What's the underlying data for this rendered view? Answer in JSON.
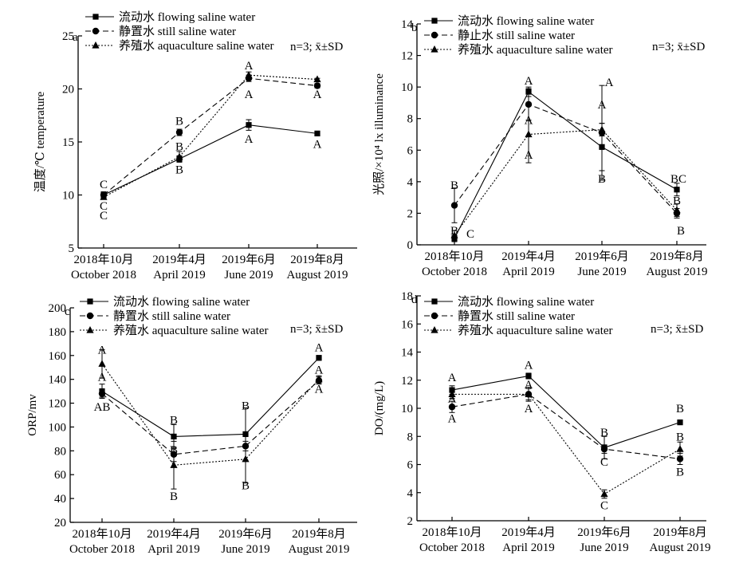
{
  "colors": {
    "ink": "#000000",
    "background": "#ffffff"
  },
  "chart_data": [
    {
      "panel": "a",
      "type": "line",
      "ylabel": "温度/℃ temperature",
      "ylim": [
        5,
        25
      ],
      "yticks": [
        5,
        10,
        15,
        20,
        25
      ],
      "categories": [
        "2018年10月 October 2018",
        "2019年4月 April 2019",
        "2019年6月 June 2019",
        "2019年8月 August 2019"
      ],
      "category_lines": [
        [
          "2018年10月",
          "October 2018"
        ],
        [
          "2019年4月",
          "April 2019"
        ],
        [
          "2019年6月",
          "June 2019"
        ],
        [
          "2019年8月",
          "August 2019"
        ]
      ],
      "stat_note": "n=3; x̄±SD",
      "series": [
        {
          "name": "流动水 flowing saline water",
          "marker": "square",
          "dash": "",
          "values": [
            10.0,
            13.4,
            16.6,
            15.8
          ],
          "errors": [
            0.3,
            0.3,
            0.5,
            0.1
          ],
          "letters": [
            {
              "text": "C",
              "y": 11.0
            },
            {
              "text": "B",
              "y": 12.4
            },
            {
              "text": "A",
              "y": 15.3
            },
            {
              "text": "A",
              "y": 14.8
            }
          ]
        },
        {
          "name": "静置水 still saline water",
          "marker": "circle",
          "dash": "7,4",
          "values": [
            10.0,
            15.9,
            21.0,
            20.3
          ],
          "errors": [
            0.3,
            0.3,
            0.3,
            0.2
          ],
          "letters": [
            {
              "text": "C",
              "y": 9.0
            },
            {
              "text": "B",
              "y": 17.0
            },
            {
              "text": "A",
              "y": 19.5
            },
            {
              "text": "A",
              "y": 19.5
            }
          ]
        },
        {
          "name": "养殖水 aquaculture saline water",
          "marker": "triangle",
          "dash": "2,2",
          "values": [
            9.8,
            13.6,
            21.3,
            20.9
          ],
          "errors": [
            0.2,
            0.5,
            0.3,
            0.1
          ],
          "letters": [
            {
              "text": "C",
              "y": 8.1
            },
            {
              "text": "B",
              "y": 14.6
            },
            {
              "text": "A",
              "y": 22.2
            },
            {
              "text": "",
              "y": 0
            }
          ]
        }
      ]
    },
    {
      "panel": "b",
      "type": "line",
      "ylabel": "光照/×10⁴ lx illuminance",
      "ylim": [
        0,
        14
      ],
      "yticks": [
        0,
        2,
        4,
        6,
        8,
        10,
        12,
        14
      ],
      "categories": [
        "2018年10月 October 2018",
        "2019年4月 April 2019",
        "2019年6月 June 2019",
        "2019年8月 August 2019"
      ],
      "category_lines": [
        [
          "2018年10月",
          "October 2018"
        ],
        [
          "2019年4月",
          "April 2019"
        ],
        [
          "2019年6月",
          "June 2019"
        ],
        [
          "2019年8月",
          "August 2019"
        ]
      ],
      "stat_note": "n=3; x̄±SD",
      "series": [
        {
          "name": "流动水 flowing saline water",
          "marker": "square",
          "dash": "",
          "values": [
            0.4,
            9.7,
            6.2,
            3.5
          ],
          "errors": [
            0.2,
            0.3,
            1.5,
            0.4
          ],
          "letters": [
            {
              "text": "B",
              "y": 3.8
            },
            {
              "text": "A",
              "y": 10.4
            },
            {
              "text": "B",
              "y": 4.2
            },
            {
              "text": "BC",
              "y": 4.2
            }
          ]
        },
        {
          "name": "静止水 still saline water",
          "marker": "circle",
          "dash": "7,4",
          "values": [
            2.5,
            8.9,
            7.1,
            2.0
          ],
          "errors": [
            1.1,
            1.0,
            3.0,
            0.3
          ],
          "letters": [
            {
              "text": "C",
              "y": 0.7
            },
            {
              "text": "A",
              "y": 7.9
            },
            {
              "text": "A",
              "y": 10.3
            },
            {
              "text": "B",
              "y": 2.8
            }
          ]
        },
        {
          "name": "养殖水 aquaculture saline water",
          "marker": "triangle",
          "dash": "2,2",
          "values": [
            0.6,
            7.0,
            7.3,
            2.2
          ],
          "errors": [
            0.3,
            1.8,
            0.4,
            0.4
          ],
          "letters": [
            {
              "text": "B",
              "y": 0.9
            },
            {
              "text": "A",
              "y": 5.7
            },
            {
              "text": "A",
              "y": 8.9
            },
            {
              "text": "B",
              "y": 0.9
            }
          ]
        }
      ]
    },
    {
      "panel": "c",
      "type": "line",
      "ylabel": "ORP/mv",
      "ylim": [
        20,
        200
      ],
      "yticks": [
        20,
        40,
        60,
        80,
        100,
        120,
        140,
        160,
        180,
        200
      ],
      "categories": [
        "2018年10月 October 2018",
        "2019年4月 April 2019",
        "2019年6月 June 2019",
        "2019年8月 August 2019"
      ],
      "category_lines": [
        [
          "2018年10月",
          "October 2018"
        ],
        [
          "2019年4月",
          "April 2019"
        ],
        [
          "2019年6月",
          "June 2019"
        ],
        [
          "2019年8月",
          "August 2019"
        ]
      ],
      "stat_note": "n=3; x̄±SD",
      "series": [
        {
          "name": "流动水 flowing saline water",
          "marker": "square",
          "dash": "",
          "values": [
            130,
            92,
            94,
            158
          ],
          "errors": [
            6,
            10,
            22,
            2
          ],
          "letters": [
            {
              "text": "AB",
              "y": 117
            },
            {
              "text": "B",
              "y": 106
            },
            {
              "text": "B",
              "y": 118
            },
            {
              "text": "A",
              "y": 167
            }
          ]
        },
        {
          "name": "静置水 still saline water",
          "marker": "circle",
          "dash": "7,4",
          "values": [
            128,
            77,
            84,
            139
          ],
          "errors": [
            3,
            6,
            4,
            3
          ],
          "letters": [
            {
              "text": "A",
              "y": 142
            },
            {
              "text": "B",
              "y": 81
            },
            {
              "text": "B",
              "y": 51
            },
            {
              "text": "A",
              "y": 148
            }
          ]
        },
        {
          "name": "养殖水 aquaculture saline water",
          "marker": "triangle",
          "dash": "2,2",
          "values": [
            153,
            68,
            73,
            140
          ],
          "errors": [
            12,
            20,
            20,
            3
          ],
          "letters": [
            {
              "text": "A",
              "y": 165
            },
            {
              "text": "B",
              "y": 42
            },
            {
              "text": "",
              "y": 0
            },
            {
              "text": "A",
              "y": 132
            }
          ]
        }
      ]
    },
    {
      "panel": "d",
      "type": "line",
      "ylabel": "DO/(mg/L)",
      "ylim": [
        2,
        18
      ],
      "yticks": [
        2,
        4,
        6,
        8,
        10,
        12,
        14,
        16,
        18
      ],
      "categories": [
        "2018年10月 October 2018",
        "2019年4月 April 2019",
        "2019年6月 June 2019",
        "2019年8月 August 2019"
      ],
      "category_lines": [
        [
          "2018年10月",
          "October 2018"
        ],
        [
          "2019年4月",
          "April 2019"
        ],
        [
          "2019年6月",
          "June 2019"
        ],
        [
          "2019年8月",
          "August 2019"
        ]
      ],
      "stat_note": "n=3; x̄±SD",
      "series": [
        {
          "name": "流动水 flowing saline water",
          "marker": "square",
          "dash": "",
          "values": [
            11.3,
            12.3,
            7.2,
            9.0
          ],
          "errors": [
            0.3,
            0.2,
            0.8,
            0.1
          ],
          "letters": [
            {
              "text": "A",
              "y": 12.2
            },
            {
              "text": "A",
              "y": 13.1
            },
            {
              "text": "B",
              "y": 8.3
            },
            {
              "text": "B",
              "y": 10.0
            }
          ]
        },
        {
          "name": "静置水 still saline water",
          "marker": "circle",
          "dash": "7,4",
          "values": [
            10.1,
            11.0,
            7.1,
            6.4
          ],
          "errors": [
            0.4,
            0.5,
            0.3,
            0.4
          ],
          "letters": [
            {
              "text": "A",
              "y": 10.7
            },
            {
              "text": "A",
              "y": 11.7
            },
            {
              "text": "C",
              "y": 6.2
            },
            {
              "text": "B",
              "y": 5.5
            }
          ]
        },
        {
          "name": "养殖水 aquaculture saline water",
          "marker": "triangle",
          "dash": "2,2",
          "values": [
            11.0,
            11.0,
            3.9,
            7.1
          ],
          "errors": [
            0.3,
            0.4,
            0.3,
            0.5
          ],
          "letters": [
            {
              "text": "A",
              "y": 9.3
            },
            {
              "text": "A",
              "y": 10.0
            },
            {
              "text": "C",
              "y": 3.1
            },
            {
              "text": "B",
              "y": 8.0
            }
          ]
        }
      ]
    }
  ]
}
